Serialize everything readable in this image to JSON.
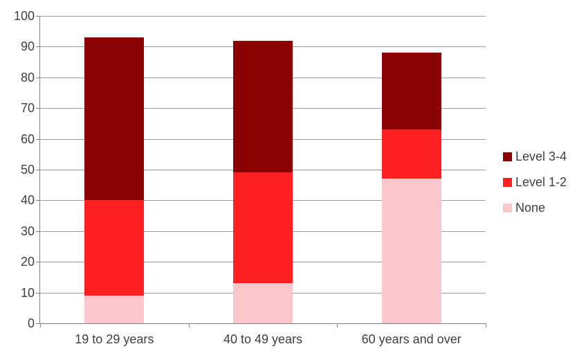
{
  "chart_data": {
    "type": "bar",
    "stacked": true,
    "title": "",
    "xlabel": "",
    "ylabel": "",
    "categories": [
      "19 to 29 years",
      "40 to 49 years",
      "60 years and over"
    ],
    "series": [
      {
        "name": "None",
        "values": [
          9,
          13,
          47
        ],
        "color": "#FBC7CB"
      },
      {
        "name": "Level 1-2",
        "values": [
          31,
          36,
          16
        ],
        "color": "#FF2121"
      },
      {
        "name": "Level 3-4",
        "values": [
          53,
          43,
          25
        ],
        "color": "#8B0000"
      }
    ],
    "stack_totals": [
      93,
      92,
      88
    ],
    "ylim": [
      0,
      100
    ],
    "yticks": [
      0,
      10,
      20,
      30,
      40,
      50,
      60,
      70,
      80,
      90,
      100
    ],
    "grid": true,
    "legend_position": "right",
    "legend_order": [
      "Level 3-4",
      "Level 1-2",
      "None"
    ]
  },
  "style": {
    "background": "#FFFFFF",
    "gridline_color": "#9B9B9B",
    "axis_color": "#7F7F7F",
    "text_color": "#3F3F3F"
  }
}
